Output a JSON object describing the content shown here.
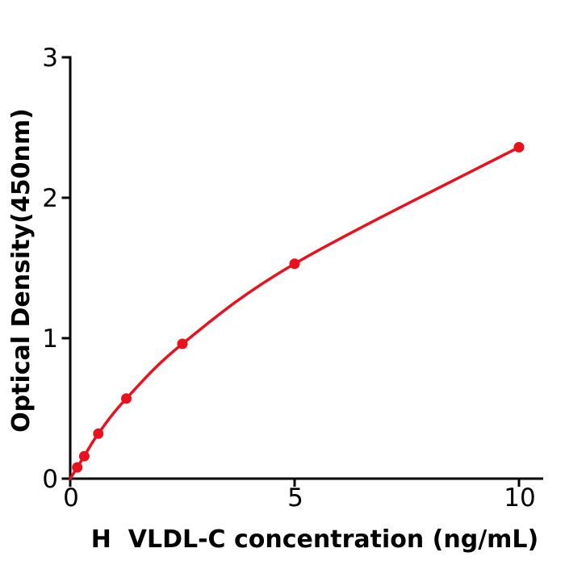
{
  "figure": {
    "background": "#ffffff",
    "text_color": "#000000"
  },
  "chart_data": {
    "type": "line",
    "title": "",
    "xlabel": "H  VLDL-C concentration (ng/mL)",
    "ylabel": "Optical Density(450nm)",
    "x": [
      0.156,
      0.3125,
      0.625,
      1.25,
      2.5,
      5,
      10
    ],
    "y": [
      0.08,
      0.16,
      0.32,
      0.57,
      0.96,
      1.53,
      2.36
    ],
    "curve_start": [
      0,
      0
    ],
    "xlim": [
      0,
      10.5
    ],
    "ylim": [
      0,
      3
    ],
    "x_ticks": [
      0,
      5,
      10
    ],
    "y_ticks": [
      0,
      1,
      2,
      3
    ],
    "x_tick_labels": [
      "0",
      "5",
      "10"
    ],
    "y_tick_labels": [
      "0",
      "1",
      "2",
      "3"
    ],
    "grid": false,
    "legend": false,
    "line_color": "#e8111d",
    "marker_color": "#e8111d",
    "axis_color": "#000000",
    "marker_shape": "circle"
  }
}
